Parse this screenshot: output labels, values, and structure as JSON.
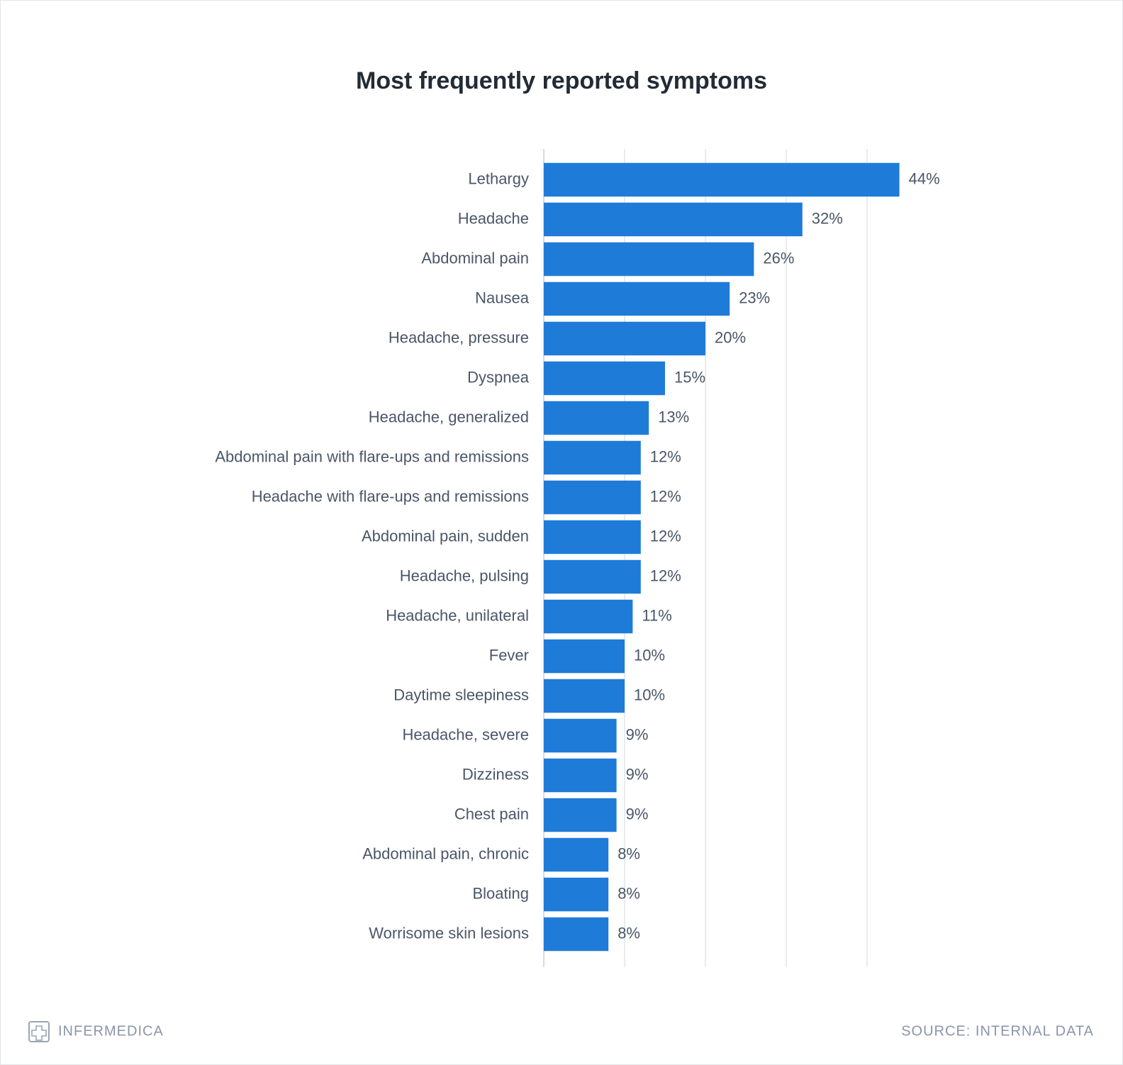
{
  "chart_data": {
    "type": "barh",
    "title": "Most frequently reported symptoms",
    "categories": [
      "Lethargy",
      "Headache",
      "Abdominal pain",
      "Nausea",
      "Headache, pressure",
      "Dyspnea",
      "Headache, generalized",
      "Abdominal pain with flare-ups and remissions",
      "Headache with flare-ups and remissions",
      "Abdominal pain, sudden",
      "Headache, pulsing",
      "Headache, unilateral",
      "Fever",
      "Daytime sleepiness",
      "Headache, severe",
      "Dizziness",
      "Chest pain",
      "Abdominal pain, chronic",
      "Bloating",
      "Worrisome skin lesions"
    ],
    "values": [
      44,
      32,
      26,
      23,
      20,
      15,
      13,
      12,
      12,
      12,
      12,
      11,
      10,
      10,
      9,
      9,
      9,
      8,
      8,
      8
    ],
    "value_labels": [
      "44%",
      "32%",
      "26%",
      "23%",
      "20%",
      "15%",
      "13%",
      "12%",
      "12%",
      "12%",
      "12%",
      "11%",
      "10%",
      "10%",
      "9%",
      "9%",
      "9%",
      "8%",
      "8%",
      "8%"
    ],
    "color": "#1f7bd8",
    "xlim": [
      0,
      50
    ],
    "xticks": [
      0,
      10,
      20,
      30,
      40
    ],
    "show_tick_labels": false,
    "grid": true
  },
  "footer": {
    "brand": "INFERMEDICA",
    "source": "SOURCE: INTERNAL DATA"
  }
}
